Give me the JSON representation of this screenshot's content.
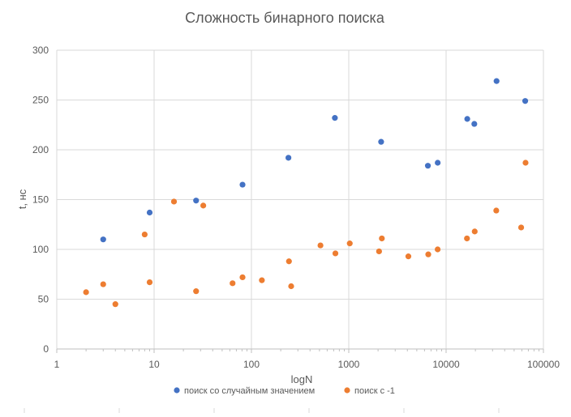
{
  "chart_data": {
    "type": "scatter",
    "title": "Сложность бинарного поиска",
    "xlabel": "logN",
    "ylabel": "t, нс",
    "x_scale": "log",
    "xlim": [
      1,
      100000
    ],
    "ylim": [
      0,
      300
    ],
    "x_ticks": [
      "1",
      "10",
      "100",
      "1000",
      "10000",
      "100000"
    ],
    "y_ticks": [
      "0",
      "50",
      "100",
      "150",
      "200",
      "250",
      "300"
    ],
    "grid": "vertical and horizontal major gridlines",
    "legend_position": "bottom",
    "series": [
      {
        "name": "поиск со случайным значением",
        "color": "#4472C4",
        "points": [
          {
            "x": 3,
            "y": 110
          },
          {
            "x": 9,
            "y": 137
          },
          {
            "x": 27,
            "y": 149
          },
          {
            "x": 81,
            "y": 165
          },
          {
            "x": 240,
            "y": 192
          },
          {
            "x": 720,
            "y": 232
          },
          {
            "x": 2150,
            "y": 208
          },
          {
            "x": 6500,
            "y": 184
          },
          {
            "x": 8200,
            "y": 187
          },
          {
            "x": 16500,
            "y": 231
          },
          {
            "x": 19500,
            "y": 226
          },
          {
            "x": 33000,
            "y": 269
          },
          {
            "x": 65000,
            "y": 249
          }
        ]
      },
      {
        "name": "поиск с -1",
        "color": "#ED7D31",
        "points": [
          {
            "x": 2,
            "y": 57
          },
          {
            "x": 3,
            "y": 65
          },
          {
            "x": 4,
            "y": 45
          },
          {
            "x": 8,
            "y": 115
          },
          {
            "x": 9,
            "y": 67
          },
          {
            "x": 16,
            "y": 148
          },
          {
            "x": 27,
            "y": 58
          },
          {
            "x": 32,
            "y": 144
          },
          {
            "x": 64,
            "y": 66
          },
          {
            "x": 81,
            "y": 72
          },
          {
            "x": 128,
            "y": 69
          },
          {
            "x": 243,
            "y": 88
          },
          {
            "x": 256,
            "y": 63
          },
          {
            "x": 512,
            "y": 104
          },
          {
            "x": 729,
            "y": 96
          },
          {
            "x": 1024,
            "y": 106
          },
          {
            "x": 2048,
            "y": 98
          },
          {
            "x": 2187,
            "y": 111
          },
          {
            "x": 4096,
            "y": 93
          },
          {
            "x": 6561,
            "y": 95
          },
          {
            "x": 8192,
            "y": 100
          },
          {
            "x": 16384,
            "y": 111
          },
          {
            "x": 19683,
            "y": 118
          },
          {
            "x": 32768,
            "y": 139
          },
          {
            "x": 59049,
            "y": 122
          },
          {
            "x": 65536,
            "y": 187
          }
        ]
      }
    ]
  }
}
